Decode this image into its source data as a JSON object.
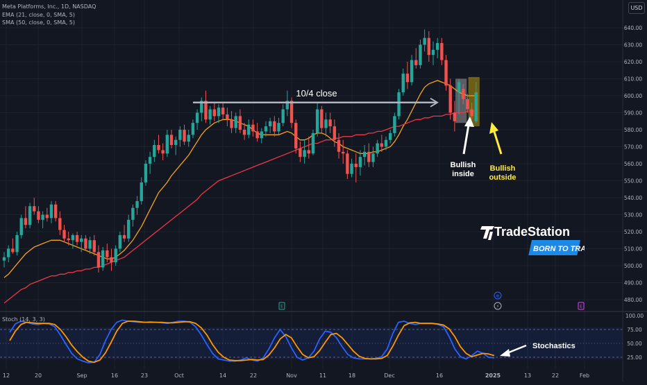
{
  "header": {
    "title": "Meta Platforms, Inc., 1D, NASDAQ",
    "ema": "EMA (21, close, 0, SMA, 5)",
    "sma": "SMA (50, close, 0, SMA, 5)",
    "currency": "USD"
  },
  "stoch_label": "Stoch (14, 3, 3)",
  "annotations": {
    "close_line": "10/4 close",
    "bullish_inside": "Bullish\ninside",
    "bullish_outside": "Bullish\noutside",
    "stochastics": "Stochastics"
  },
  "logo": {
    "name": "TradeStation",
    "tagline": "BORN TO TRADE"
  },
  "colors": {
    "background": "#131722",
    "up_candle": "#26a69a",
    "down_candle": "#ef5350",
    "ema": "#f7a21b",
    "sma": "#f23645",
    "stoch_k": "#2962ff",
    "stoch_d": "#ff9800",
    "outside_highlight": "#ffeb3b",
    "logo_blue": "#1e88e5"
  },
  "chart_data": [
    {
      "type": "candlestick",
      "x_ticks": [
        "12",
        "20",
        "Sep",
        "16",
        "23",
        "Oct",
        "14",
        "22",
        "Nov",
        "11",
        "18",
        "Dec",
        "16",
        "2025",
        "13",
        "22",
        "Feb"
      ],
      "y_ticks": [
        480,
        490,
        500,
        510,
        520,
        530,
        540,
        550,
        560,
        570,
        580,
        590,
        600,
        610,
        620,
        630,
        640
      ],
      "ylim": [
        473,
        645
      ],
      "event_markers": [
        "E",
        "⊕",
        "⚡",
        "E"
      ],
      "candles": [
        {
          "o": 503,
          "h": 508,
          "l": 499,
          "c": 505
        },
        {
          "o": 505,
          "h": 512,
          "l": 502,
          "c": 510
        },
        {
          "o": 510,
          "h": 516,
          "l": 507,
          "c": 508
        },
        {
          "o": 508,
          "h": 520,
          "l": 506,
          "c": 518
        },
        {
          "o": 518,
          "h": 530,
          "l": 516,
          "c": 528
        },
        {
          "o": 528,
          "h": 535,
          "l": 522,
          "c": 524
        },
        {
          "o": 524,
          "h": 537,
          "l": 522,
          "c": 535
        },
        {
          "o": 535,
          "h": 540,
          "l": 530,
          "c": 532
        },
        {
          "o": 532,
          "h": 535,
          "l": 525,
          "c": 527
        },
        {
          "o": 527,
          "h": 532,
          "l": 522,
          "c": 530
        },
        {
          "o": 530,
          "h": 534,
          "l": 526,
          "c": 528
        },
        {
          "o": 528,
          "h": 538,
          "l": 525,
          "c": 536
        },
        {
          "o": 536,
          "h": 538,
          "l": 526,
          "c": 528
        },
        {
          "o": 528,
          "h": 532,
          "l": 518,
          "c": 521
        },
        {
          "o": 521,
          "h": 524,
          "l": 514,
          "c": 516
        },
        {
          "o": 516,
          "h": 520,
          "l": 512,
          "c": 515
        },
        {
          "o": 515,
          "h": 519,
          "l": 510,
          "c": 518
        },
        {
          "o": 518,
          "h": 520,
          "l": 512,
          "c": 514
        },
        {
          "o": 514,
          "h": 518,
          "l": 508,
          "c": 516
        },
        {
          "o": 516,
          "h": 518,
          "l": 509,
          "c": 510
        },
        {
          "o": 510,
          "h": 517,
          "l": 507,
          "c": 515
        },
        {
          "o": 515,
          "h": 518,
          "l": 506,
          "c": 508
        },
        {
          "o": 508,
          "h": 512,
          "l": 496,
          "c": 499
        },
        {
          "o": 499,
          "h": 511,
          "l": 497,
          "c": 509
        },
        {
          "o": 509,
          "h": 513,
          "l": 502,
          "c": 505
        },
        {
          "o": 505,
          "h": 510,
          "l": 497,
          "c": 502
        },
        {
          "o": 502,
          "h": 512,
          "l": 500,
          "c": 510
        },
        {
          "o": 510,
          "h": 520,
          "l": 508,
          "c": 518
        },
        {
          "o": 518,
          "h": 524,
          "l": 514,
          "c": 516
        },
        {
          "o": 516,
          "h": 530,
          "l": 514,
          "c": 527
        },
        {
          "o": 527,
          "h": 536,
          "l": 523,
          "c": 534
        },
        {
          "o": 534,
          "h": 541,
          "l": 530,
          "c": 538
        },
        {
          "o": 538,
          "h": 552,
          "l": 536,
          "c": 549
        },
        {
          "o": 549,
          "h": 562,
          "l": 547,
          "c": 560
        },
        {
          "o": 560,
          "h": 567,
          "l": 554,
          "c": 564
        },
        {
          "o": 564,
          "h": 574,
          "l": 561,
          "c": 571
        },
        {
          "o": 571,
          "h": 577,
          "l": 566,
          "c": 568
        },
        {
          "o": 568,
          "h": 572,
          "l": 562,
          "c": 566
        },
        {
          "o": 566,
          "h": 580,
          "l": 564,
          "c": 577
        },
        {
          "o": 577,
          "h": 580,
          "l": 569,
          "c": 571
        },
        {
          "o": 571,
          "h": 576,
          "l": 565,
          "c": 574
        },
        {
          "o": 574,
          "h": 582,
          "l": 570,
          "c": 580
        },
        {
          "o": 580,
          "h": 583,
          "l": 571,
          "c": 573
        },
        {
          "o": 573,
          "h": 580,
          "l": 570,
          "c": 577
        },
        {
          "o": 577,
          "h": 586,
          "l": 575,
          "c": 584
        },
        {
          "o": 584,
          "h": 592,
          "l": 580,
          "c": 590
        },
        {
          "o": 590,
          "h": 599,
          "l": 585,
          "c": 597
        },
        {
          "o": 597,
          "h": 603,
          "l": 584,
          "c": 586
        },
        {
          "o": 586,
          "h": 594,
          "l": 583,
          "c": 592
        },
        {
          "o": 592,
          "h": 596,
          "l": 585,
          "c": 588
        },
        {
          "o": 588,
          "h": 595,
          "l": 584,
          "c": 593
        },
        {
          "o": 593,
          "h": 596,
          "l": 586,
          "c": 589
        },
        {
          "o": 589,
          "h": 593,
          "l": 582,
          "c": 586
        },
        {
          "o": 586,
          "h": 591,
          "l": 578,
          "c": 581
        },
        {
          "o": 581,
          "h": 590,
          "l": 578,
          "c": 588
        },
        {
          "o": 588,
          "h": 592,
          "l": 578,
          "c": 580
        },
        {
          "o": 580,
          "h": 584,
          "l": 574,
          "c": 577
        },
        {
          "o": 577,
          "h": 586,
          "l": 575,
          "c": 583
        },
        {
          "o": 583,
          "h": 586,
          "l": 576,
          "c": 579
        },
        {
          "o": 579,
          "h": 584,
          "l": 573,
          "c": 575
        },
        {
          "o": 575,
          "h": 581,
          "l": 572,
          "c": 579
        },
        {
          "o": 579,
          "h": 585,
          "l": 576,
          "c": 582
        },
        {
          "o": 582,
          "h": 587,
          "l": 578,
          "c": 585
        },
        {
          "o": 585,
          "h": 588,
          "l": 576,
          "c": 579
        },
        {
          "o": 579,
          "h": 587,
          "l": 577,
          "c": 584
        },
        {
          "o": 584,
          "h": 595,
          "l": 582,
          "c": 592
        },
        {
          "o": 592,
          "h": 603,
          "l": 588,
          "c": 597
        },
        {
          "o": 597,
          "h": 599,
          "l": 581,
          "c": 584
        },
        {
          "o": 584,
          "h": 586,
          "l": 566,
          "c": 569
        },
        {
          "o": 569,
          "h": 573,
          "l": 561,
          "c": 564
        },
        {
          "o": 564,
          "h": 574,
          "l": 560,
          "c": 568
        },
        {
          "o": 568,
          "h": 576,
          "l": 563,
          "c": 566
        },
        {
          "o": 566,
          "h": 580,
          "l": 565,
          "c": 578
        },
        {
          "o": 578,
          "h": 596,
          "l": 576,
          "c": 592
        },
        {
          "o": 592,
          "h": 594,
          "l": 578,
          "c": 581
        },
        {
          "o": 581,
          "h": 590,
          "l": 576,
          "c": 586
        },
        {
          "o": 586,
          "h": 590,
          "l": 578,
          "c": 582
        },
        {
          "o": 582,
          "h": 586,
          "l": 570,
          "c": 574
        },
        {
          "o": 574,
          "h": 578,
          "l": 563,
          "c": 567
        },
        {
          "o": 567,
          "h": 574,
          "l": 560,
          "c": 566
        },
        {
          "o": 566,
          "h": 568,
          "l": 551,
          "c": 554
        },
        {
          "o": 554,
          "h": 563,
          "l": 552,
          "c": 560
        },
        {
          "o": 560,
          "h": 566,
          "l": 549,
          "c": 558
        },
        {
          "o": 558,
          "h": 568,
          "l": 553,
          "c": 564
        },
        {
          "o": 564,
          "h": 571,
          "l": 559,
          "c": 567
        },
        {
          "o": 567,
          "h": 572,
          "l": 558,
          "c": 561
        },
        {
          "o": 561,
          "h": 570,
          "l": 558,
          "c": 566
        },
        {
          "o": 566,
          "h": 574,
          "l": 564,
          "c": 572
        },
        {
          "o": 572,
          "h": 577,
          "l": 567,
          "c": 570
        },
        {
          "o": 570,
          "h": 576,
          "l": 568,
          "c": 574
        },
        {
          "o": 574,
          "h": 580,
          "l": 572,
          "c": 578
        },
        {
          "o": 578,
          "h": 590,
          "l": 576,
          "c": 588
        },
        {
          "o": 588,
          "h": 604,
          "l": 586,
          "c": 602
        },
        {
          "o": 602,
          "h": 616,
          "l": 600,
          "c": 613
        },
        {
          "o": 613,
          "h": 620,
          "l": 604,
          "c": 608
        },
        {
          "o": 608,
          "h": 624,
          "l": 606,
          "c": 621
        },
        {
          "o": 621,
          "h": 628,
          "l": 616,
          "c": 618
        },
        {
          "o": 618,
          "h": 633,
          "l": 616,
          "c": 630
        },
        {
          "o": 630,
          "h": 639,
          "l": 626,
          "c": 634
        },
        {
          "o": 634,
          "h": 638,
          "l": 620,
          "c": 624
        },
        {
          "o": 624,
          "h": 632,
          "l": 618,
          "c": 627
        },
        {
          "o": 627,
          "h": 634,
          "l": 622,
          "c": 631
        },
        {
          "o": 631,
          "h": 634,
          "l": 618,
          "c": 621
        },
        {
          "o": 621,
          "h": 624,
          "l": 603,
          "c": 606
        },
        {
          "o": 606,
          "h": 610,
          "l": 586,
          "c": 590
        },
        {
          "o": 590,
          "h": 597,
          "l": 579,
          "c": 585
        },
        {
          "o": 602,
          "h": 610,
          "l": 589,
          "c": 608
        },
        {
          "o": 604,
          "h": 607,
          "l": 595,
          "c": 598
        },
        {
          "o": 598,
          "h": 601,
          "l": 590,
          "c": 592
        },
        {
          "o": 592,
          "h": 596,
          "l": 586,
          "c": 588
        },
        {
          "o": 585,
          "h": 608,
          "l": 584,
          "c": 602
        }
      ],
      "series": [
        {
          "name": "EMA (21, close, 0, SMA, 5)",
          "values": [
            493,
            495,
            498,
            501,
            504,
            507,
            509,
            511,
            512,
            513,
            514,
            515,
            515,
            515,
            514,
            513,
            512,
            511,
            510,
            509,
            508,
            507,
            506,
            505,
            504,
            504,
            505,
            507,
            509,
            512,
            515,
            519,
            523,
            528,
            533,
            538,
            543,
            546,
            549,
            553,
            556,
            559,
            562,
            565,
            569,
            573,
            577,
            580,
            582,
            584,
            585,
            586,
            586,
            586,
            585,
            584,
            583,
            582,
            580,
            578,
            577,
            577,
            577,
            577,
            577,
            578,
            579,
            578,
            576,
            574,
            574,
            575,
            577,
            578,
            578,
            577,
            575,
            573,
            572,
            570,
            569,
            568,
            567,
            566,
            566,
            566,
            567,
            567,
            568,
            569,
            570,
            573,
            577,
            582,
            586,
            591,
            596,
            601,
            605,
            607,
            608,
            609,
            608,
            607,
            606,
            604,
            602,
            601,
            600,
            600,
            600
          ]
        },
        {
          "name": "SMA (50, close, 0, SMA, 5)",
          "values": [
            478,
            480,
            482,
            484,
            486,
            487,
            489,
            490,
            491,
            492,
            493,
            494,
            494,
            495,
            495,
            496,
            496,
            497,
            497,
            498,
            498,
            499,
            499,
            500,
            501,
            502,
            503,
            504,
            505,
            507,
            509,
            511,
            513,
            515,
            517,
            519,
            521,
            523,
            525,
            527,
            529,
            531,
            533,
            535,
            537,
            539,
            542,
            544,
            546,
            548,
            550,
            551,
            552,
            553,
            554,
            555,
            556,
            557,
            558,
            559,
            560,
            561,
            562,
            563,
            564,
            565,
            566,
            567,
            568,
            569,
            570,
            571,
            572,
            572,
            573,
            574,
            574,
            575,
            575,
            576,
            576,
            576,
            577,
            577,
            577,
            578,
            578,
            579,
            579,
            580,
            581,
            582,
            582,
            583,
            584,
            585,
            586,
            586,
            587,
            587,
            588,
            588,
            588,
            589,
            589,
            590,
            590,
            590,
            591,
            591,
            591
          ]
        }
      ],
      "annotation": {
        "level": 596,
        "label": "10/4 close"
      }
    },
    {
      "type": "line",
      "title": "Stoch (14, 3, 3)",
      "y_ticks": [
        25,
        50,
        75,
        100
      ],
      "ylim": [
        15,
        105
      ],
      "series": [
        {
          "name": "%K",
          "values": [
            70,
            85,
            90,
            88,
            85,
            84,
            86,
            85,
            80,
            65,
            48,
            32,
            22,
            18,
            15,
            16,
            30,
            55,
            75,
            88,
            92,
            90,
            89,
            88,
            88,
            89,
            88,
            87,
            86,
            88,
            90,
            90,
            88,
            80,
            65,
            48,
            32,
            22,
            20,
            18,
            18,
            20,
            24,
            20,
            18,
            24,
            40,
            60,
            75,
            62,
            42,
            25,
            20,
            24,
            36,
            58,
            72,
            70,
            60,
            44,
            30,
            24,
            22,
            22,
            22,
            23,
            26,
            40,
            68,
            88,
            90,
            86,
            84,
            86,
            86,
            86,
            84,
            80,
            62,
            40,
            26,
            22,
            28,
            36,
            32,
            25,
            24
          ]
        },
        {
          "name": "%D",
          "values": [
            55,
            72,
            84,
            88,
            87,
            86,
            86,
            86,
            84,
            75,
            62,
            47,
            35,
            25,
            18,
            16,
            20,
            33,
            52,
            72,
            86,
            90,
            90,
            89,
            88,
            88,
            88,
            88,
            87,
            87,
            88,
            89,
            89,
            86,
            78,
            65,
            48,
            34,
            25,
            20,
            19,
            19,
            20,
            21,
            20,
            21,
            29,
            42,
            58,
            66,
            60,
            44,
            30,
            24,
            26,
            37,
            52,
            66,
            68,
            60,
            48,
            36,
            27,
            23,
            22,
            22,
            23,
            28,
            45,
            65,
            82,
            87,
            88,
            86,
            86,
            86,
            85,
            83,
            76,
            62,
            44,
            32,
            26,
            29,
            32,
            31,
            28
          ]
        }
      ]
    }
  ]
}
